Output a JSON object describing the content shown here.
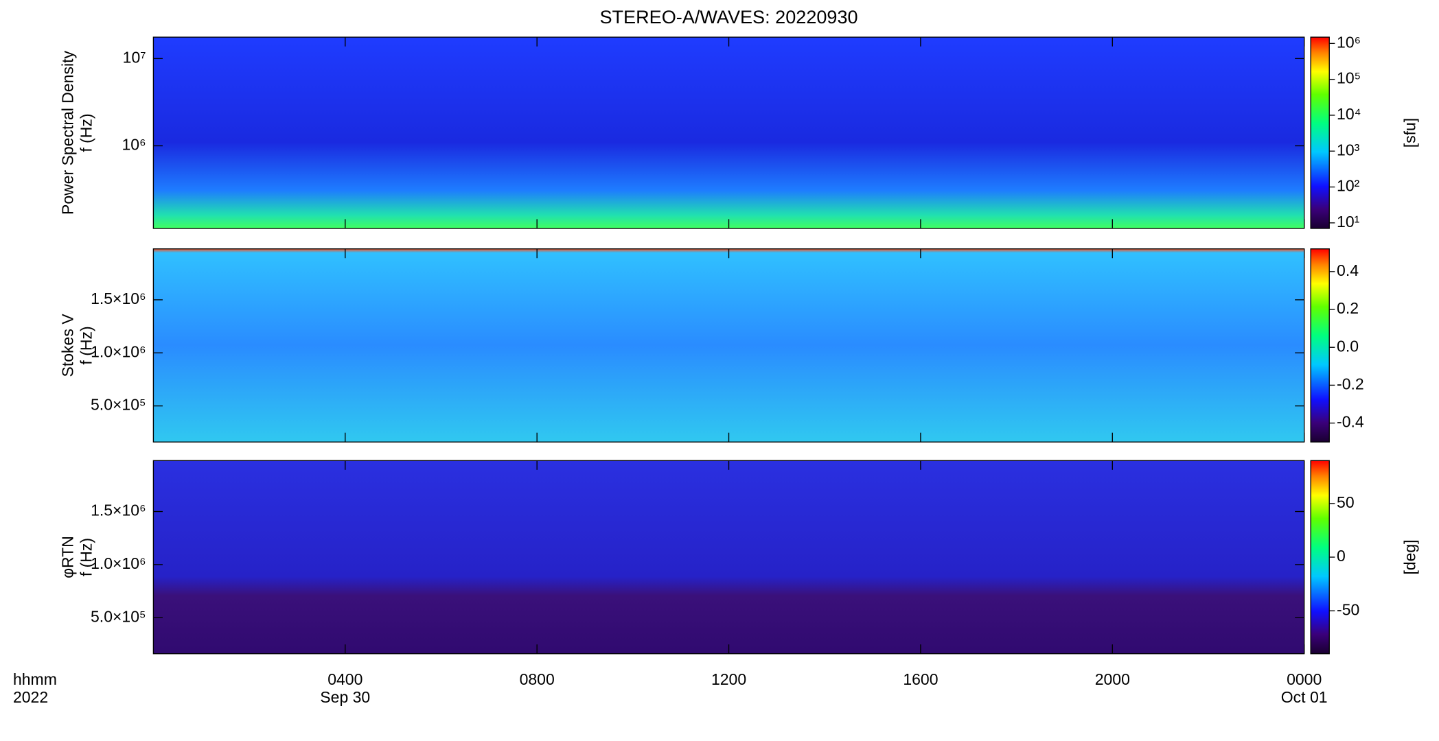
{
  "chart_data": [
    {
      "type": "spectrogram",
      "title": "STEREO-A/WAVES: 20220930",
      "ylabel": [
        "Power Spectral Density",
        "f (Hz)"
      ],
      "ylog": true,
      "ylim": [
        113000,
        17600000
      ],
      "yticks": [
        {
          "value": 1000000,
          "label": "10⁶"
        },
        {
          "value": 10000000,
          "label": "10⁷"
        }
      ],
      "clog": true,
      "clim": [
        7,
        1500000
      ],
      "cticks": [
        {
          "value": 10,
          "label": "10¹"
        },
        {
          "value": 100,
          "label": "10²"
        },
        {
          "value": 1000,
          "label": "10³"
        },
        {
          "value": 10000,
          "label": "10⁴"
        },
        {
          "value": 100000,
          "label": "10⁵"
        },
        {
          "value": 1000000,
          "label": "10⁶"
        }
      ],
      "clabel": "[sfu]",
      "xlim": [
        0,
        24
      ]
    },
    {
      "type": "spectrogram",
      "ylabel": [
        "Stokes V",
        "f (Hz)"
      ],
      "ylog": false,
      "ylim": [
        160000,
        1980000
      ],
      "yticks": [
        {
          "value": 500000,
          "label": "5.0×10⁵"
        },
        {
          "value": 1000000,
          "label": "1.0×10⁶"
        },
        {
          "value": 1500000,
          "label": "1.5×10⁶"
        }
      ],
      "clog": false,
      "clim": [
        -0.5,
        0.52
      ],
      "cticks": [
        -0.4,
        -0.2,
        {
          "value": 0,
          "label": "0.0"
        },
        0.2,
        0.4
      ],
      "xlim": [
        0,
        24
      ]
    },
    {
      "type": "spectrogram",
      "ylabel": [
        "φRTN",
        "f (Hz)"
      ],
      "ylog": false,
      "ylim": [
        160000,
        1980000
      ],
      "yticks": [
        {
          "value": 500000,
          "label": "5.0×10⁵"
        },
        {
          "value": 1000000,
          "label": "1.0×10⁶"
        },
        {
          "value": 1500000,
          "label": "1.5×10⁶"
        }
      ],
      "clog": false,
      "clim": [
        -90,
        90
      ],
      "cticks": [
        -50,
        0,
        50
      ],
      "clabel": "[deg]",
      "xlim": [
        0,
        24
      ],
      "xticks": [
        {
          "value": 4,
          "label": "0400"
        },
        {
          "value": 8,
          "label": "0800"
        },
        {
          "value": 12,
          "label": "1200"
        },
        {
          "value": 16,
          "label": "1600"
        },
        {
          "value": 20,
          "label": "2000"
        },
        {
          "value": 24,
          "label": "0000"
        }
      ],
      "xticks_date": [
        {
          "value": 4,
          "label": "Sep 30"
        },
        {
          "value": 24,
          "label": "Oct 01"
        }
      ],
      "xlabel": [
        "hhmm",
        "2022"
      ]
    }
  ]
}
